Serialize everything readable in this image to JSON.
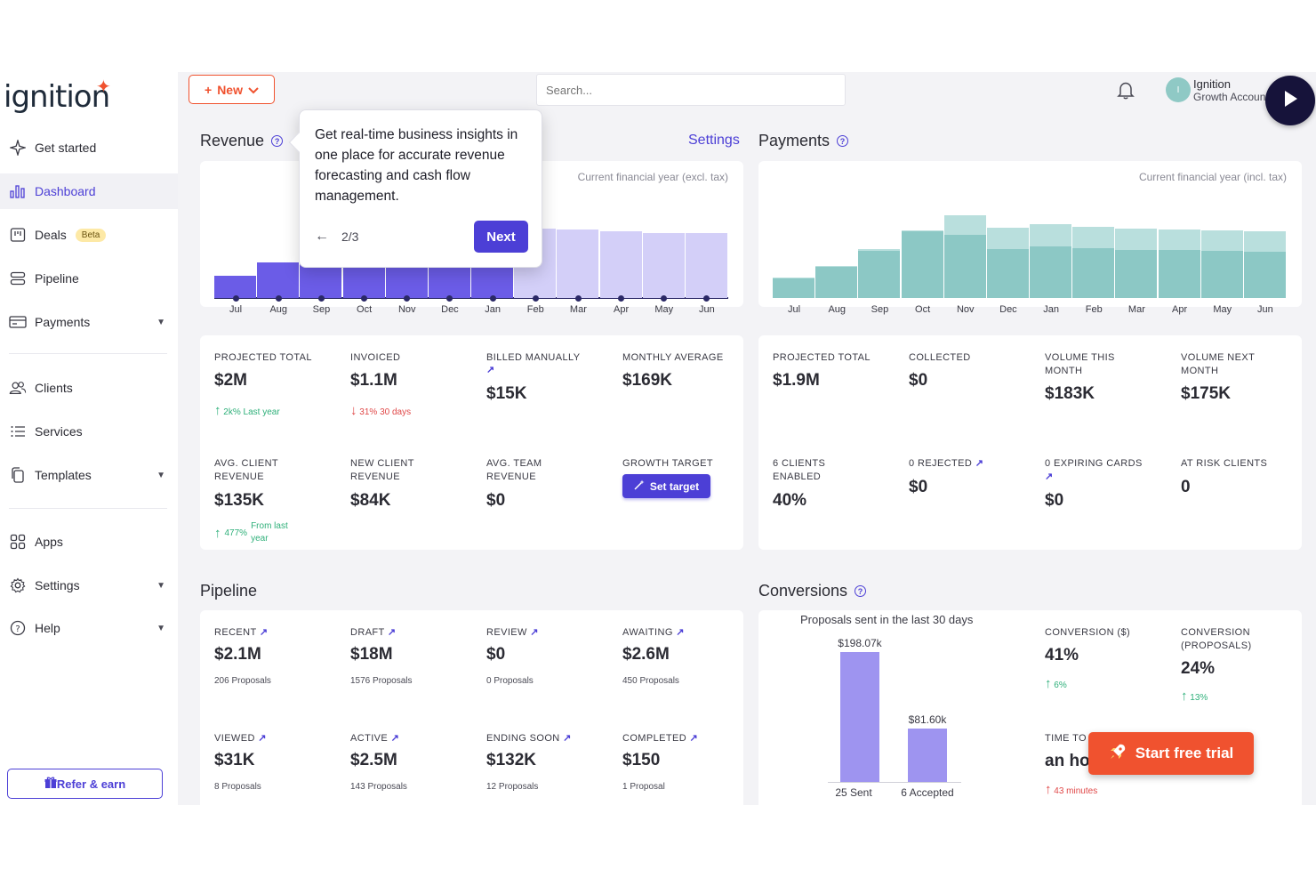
{
  "brand": {
    "name": "ignition",
    "star": "✦"
  },
  "sidebar": {
    "items": [
      {
        "label": "Get started",
        "icon": "sparkle-icon"
      },
      {
        "label": "Dashboard",
        "icon": "bar-chart-icon",
        "active": true
      },
      {
        "label": "Deals",
        "icon": "deals-icon",
        "badge": "Beta"
      },
      {
        "label": "Pipeline",
        "icon": "pipeline-icon"
      },
      {
        "label": "Payments",
        "icon": "card-icon",
        "caret": true
      },
      {
        "label": "Clients",
        "icon": "users-icon"
      },
      {
        "label": "Services",
        "icon": "list-icon"
      },
      {
        "label": "Templates",
        "icon": "copy-icon",
        "caret": true
      },
      {
        "label": "Apps",
        "icon": "grid-icon"
      },
      {
        "label": "Settings",
        "icon": "gear-icon",
        "caret": true
      },
      {
        "label": "Help",
        "icon": "help-icon",
        "caret": true
      }
    ],
    "refer_label": "Refer & earn"
  },
  "topbar": {
    "new_label": "New",
    "search_placeholder": "Search...",
    "user_initial": "I",
    "user_name": "Ignition",
    "user_sub": "Growth Account"
  },
  "revenue": {
    "title": "Revenue",
    "settings_label": "Settings",
    "chart_note": "Current financial year (excl. tax)",
    "kpis": [
      {
        "label": "PROJECTED TOTAL",
        "value": "$2M",
        "trend": "2k%",
        "trend_text": "Last year",
        "dir": "up"
      },
      {
        "label": "INVOICED",
        "value": "$1.1M",
        "trend": "31%",
        "trend_text": "30 days",
        "dir": "down"
      },
      {
        "label": "BILLED MANUALLY",
        "value": "$15K",
        "link": "↗"
      },
      {
        "label": "MONTHLY AVERAGE",
        "value": "$169K"
      },
      {
        "label": "AVG. CLIENT REVENUE",
        "value": "$135K",
        "trend": "477%",
        "trend_text": "From last year",
        "dir": "up"
      },
      {
        "label": "NEW CLIENT REVENUE",
        "value": "$84K"
      },
      {
        "label": "AVG. TEAM REVENUE",
        "value": "$0"
      },
      {
        "label": "GROWTH TARGET",
        "button": "Set target"
      }
    ]
  },
  "payments": {
    "title": "Payments",
    "chart_note": "Current financial year (incl. tax)",
    "kpis": [
      {
        "label": "PROJECTED TOTAL",
        "value": "$1.9M"
      },
      {
        "label": "COLLECTED",
        "value": "$0"
      },
      {
        "label": "VOLUME THIS MONTH",
        "value": "$183K"
      },
      {
        "label": "VOLUME NEXT MONTH",
        "value": "$175K"
      },
      {
        "label": "6 CLIENTS ENABLED",
        "value": "40%"
      },
      {
        "label": "0 REJECTED",
        "value": "$0",
        "link": "↗"
      },
      {
        "label": "0 EXPIRING CARDS",
        "value": "$0",
        "link": "↗"
      },
      {
        "label": "AT RISK CLIENTS",
        "value": "0"
      }
    ]
  },
  "pipeline": {
    "title": "Pipeline",
    "items": [
      {
        "label": "RECENT",
        "value": "$2.1M",
        "sub": "206 Proposals"
      },
      {
        "label": "DRAFT",
        "value": "$18M",
        "sub": "1576 Proposals"
      },
      {
        "label": "REVIEW",
        "value": "$0",
        "sub": "0 Proposals"
      },
      {
        "label": "AWAITING",
        "value": "$2.6M",
        "sub": "450 Proposals"
      },
      {
        "label": "VIEWED",
        "value": "$31K",
        "sub": "8 Proposals"
      },
      {
        "label": "ACTIVE",
        "value": "$2.5M",
        "sub": "143 Proposals"
      },
      {
        "label": "ENDING SOON",
        "value": "$132K",
        "sub": "12 Proposals"
      },
      {
        "label": "COMPLETED",
        "value": "$150",
        "sub": "1 Proposal"
      }
    ]
  },
  "conversions": {
    "title": "Conversions",
    "chart_title": "Proposals sent in the last 30 days",
    "bars": [
      {
        "label": "25 Sent",
        "value_label": "$198.07k",
        "value": 198.07
      },
      {
        "label": "6 Accepted",
        "value_label": "$81.60k",
        "value": 81.6
      }
    ],
    "kpis": [
      {
        "label": "CONVERSION ($)",
        "value": "41%",
        "trend": "6%"
      },
      {
        "label": "CONVERSION (PROPOSALS)",
        "value": "24%",
        "trend": "13%"
      },
      {
        "label": "TIME TO",
        "value": "an ho",
        "trend": "43 minutes"
      }
    ]
  },
  "tooltip": {
    "text": "Get real-time business insights in one place for accurate revenue forecasting and cash flow management.",
    "step": "2/3",
    "next_label": "Next"
  },
  "trial": {
    "label": "Start free trial"
  },
  "chart_data": [
    {
      "type": "bar",
      "categories": [
        "Jul",
        "Aug",
        "Sep",
        "Oct",
        "Nov",
        "Dec",
        "Jan",
        "Feb",
        "Mar",
        "Apr",
        "May",
        "Jun"
      ],
      "series": [
        {
          "values": [
            25,
            40,
            52,
            55,
            57,
            60,
            62,
            0,
            0,
            0,
            0,
            0
          ]
        },
        {
          "values": [
            0,
            0,
            0,
            0,
            0,
            0,
            0,
            78,
            77,
            75,
            73,
            73
          ]
        }
      ]
    },
    {
      "type": "bar",
      "categories": [
        "Jul",
        "Aug",
        "Sep",
        "Oct",
        "Nov",
        "Dec",
        "Jan",
        "Feb",
        "Mar",
        "Apr",
        "May",
        "Jun"
      ],
      "series": [
        {
          "values": [
            22,
            35,
            53,
            75,
            71,
            55,
            58,
            56,
            54,
            54,
            53,
            52
          ]
        },
        {
          "values": [
            23,
            36,
            55,
            76,
            93,
            79,
            83,
            80,
            78,
            77,
            76,
            75
          ]
        }
      ]
    },
    {
      "type": "bar",
      "title": "Proposals sent in the last 30 days",
      "categories": [
        "25 Sent",
        "6 Accepted"
      ],
      "values": [
        198.07,
        81.6
      ]
    }
  ],
  "colors": {
    "accent": "#4c3fd6",
    "brand_orange": "#f0522f",
    "revenue_actual": "#6b5ce7",
    "revenue_forecast": "#d3cff8",
    "payments_actual": "#8cc8c5",
    "payments_forecast": "#b9dfdd",
    "conversion_bar": "#9e94f0"
  }
}
